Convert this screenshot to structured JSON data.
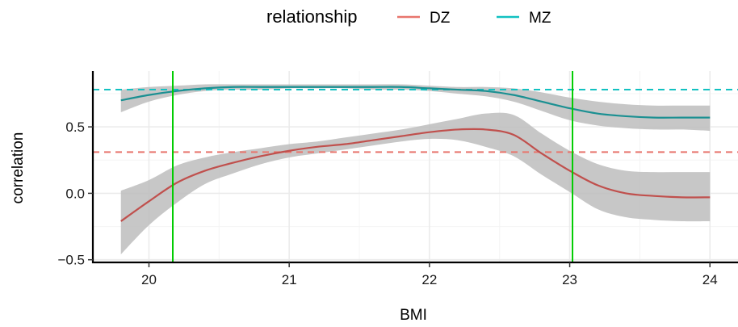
{
  "chart_data": {
    "type": "line",
    "xlabel": "BMI",
    "ylabel": "correlation",
    "xlim": [
      19.6,
      24.2
    ],
    "ylim": [
      -0.52,
      0.92
    ],
    "x_ticks": [
      20,
      21,
      22,
      23,
      24
    ],
    "y_ticks": [
      -0.5,
      0.0,
      0.5
    ],
    "y_tick_labels": [
      "−0.5",
      "0.0",
      "0.5"
    ],
    "grid": true,
    "legend": {
      "title": "relationship",
      "placement": "top",
      "entries": [
        "DZ",
        "MZ"
      ]
    },
    "vlines": [
      {
        "x": 20.17,
        "color": "#00cc00"
      },
      {
        "x": 23.02,
        "color": "#00cc00"
      }
    ],
    "series": [
      {
        "name": "DZ",
        "color": "#e8756d",
        "line_color": "#c0504d",
        "hline": 0.31,
        "x": [
          19.8,
          20.0,
          20.2,
          20.4,
          20.6,
          20.8,
          21.0,
          21.2,
          21.4,
          21.6,
          21.8,
          22.0,
          22.2,
          22.4,
          22.6,
          22.8,
          23.0,
          23.2,
          23.4,
          23.6,
          23.8,
          24.0
        ],
        "y": [
          -0.21,
          -0.06,
          0.08,
          0.17,
          0.23,
          0.28,
          0.32,
          0.35,
          0.37,
          0.4,
          0.43,
          0.46,
          0.48,
          0.48,
          0.44,
          0.3,
          0.17,
          0.06,
          0.0,
          -0.02,
          -0.03,
          -0.03
        ],
        "lower": [
          -0.46,
          -0.24,
          -0.07,
          0.07,
          0.15,
          0.22,
          0.27,
          0.3,
          0.33,
          0.36,
          0.39,
          0.41,
          0.4,
          0.35,
          0.28,
          0.14,
          0.01,
          -0.12,
          -0.18,
          -0.2,
          -0.21,
          -0.21
        ],
        "upper": [
          0.02,
          0.1,
          0.21,
          0.27,
          0.31,
          0.34,
          0.37,
          0.39,
          0.42,
          0.45,
          0.48,
          0.52,
          0.56,
          0.6,
          0.59,
          0.45,
          0.32,
          0.22,
          0.17,
          0.16,
          0.16,
          0.16
        ]
      },
      {
        "name": "MZ",
        "color": "#12c1c1",
        "line_color": "#1b9092",
        "hline": 0.78,
        "x": [
          19.8,
          20.0,
          20.2,
          20.4,
          20.6,
          20.8,
          21.0,
          21.2,
          21.4,
          21.6,
          21.8,
          22.0,
          22.2,
          22.4,
          22.6,
          22.8,
          23.0,
          23.2,
          23.4,
          23.6,
          23.8,
          24.0
        ],
        "y": [
          0.7,
          0.74,
          0.77,
          0.79,
          0.8,
          0.8,
          0.8,
          0.8,
          0.8,
          0.8,
          0.8,
          0.79,
          0.78,
          0.77,
          0.74,
          0.69,
          0.64,
          0.6,
          0.58,
          0.57,
          0.57,
          0.57
        ],
        "lower": [
          0.61,
          0.69,
          0.74,
          0.77,
          0.78,
          0.78,
          0.79,
          0.79,
          0.79,
          0.78,
          0.78,
          0.77,
          0.75,
          0.73,
          0.69,
          0.62,
          0.55,
          0.51,
          0.49,
          0.48,
          0.48,
          0.47
        ],
        "upper": [
          0.78,
          0.8,
          0.81,
          0.82,
          0.82,
          0.82,
          0.82,
          0.82,
          0.82,
          0.82,
          0.82,
          0.81,
          0.8,
          0.8,
          0.79,
          0.76,
          0.72,
          0.69,
          0.67,
          0.66,
          0.66,
          0.66
        ]
      }
    ]
  }
}
